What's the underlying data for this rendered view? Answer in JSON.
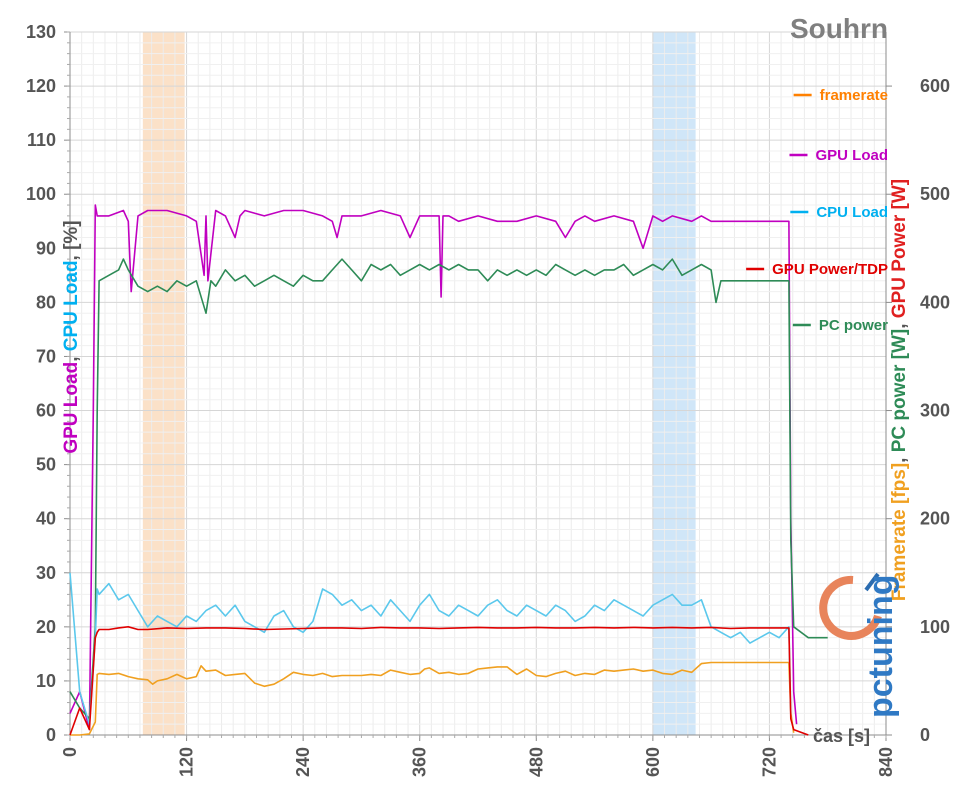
{
  "chart_data": {
    "type": "line",
    "title": "Souhrn",
    "xlabel": "čas [s]",
    "ylabel_left_parts": [
      {
        "text": "GPU Load",
        "color": "#c000c0"
      },
      {
        "text": ", ",
        "color": "#555555"
      },
      {
        "text": "CPU Load",
        "color": "#00b0f0"
      },
      {
        "text": ", [%]",
        "color": "#555555"
      }
    ],
    "ylabel_right_parts": [
      {
        "text": "Framerate [fps]",
        "color": "#f0a020"
      },
      {
        "text": ", ",
        "color": "#555555"
      },
      {
        "text": "PC power [W]",
        "color": "#2e8b57"
      },
      {
        "text": ", ",
        "color": "#555555"
      },
      {
        "text": "GPU Power [W]",
        "color": "#e02020"
      }
    ],
    "xlim": [
      0,
      840
    ],
    "ylim_left": [
      0,
      130
    ],
    "ylim_right": [
      0,
      650
    ],
    "x_ticks": [
      "0",
      "120",
      "240",
      "360",
      "480",
      "600",
      "720",
      "840"
    ],
    "y_left_ticks": [
      "0",
      "10",
      "20",
      "30",
      "40",
      "50",
      "60",
      "70",
      "80",
      "90",
      "100",
      "110",
      "120",
      "130"
    ],
    "y_right_ticks": [
      "0",
      "100",
      "200",
      "300",
      "400",
      "500",
      "600"
    ],
    "grid": true,
    "highlight_bands": [
      {
        "x0": 75,
        "x1": 118,
        "color": "#f8c89a"
      },
      {
        "x0": 600,
        "x1": 644,
        "color": "#a9d2f3"
      }
    ],
    "legend": {
      "placement": "right",
      "entries": [
        {
          "name": "framerate",
          "color": "#ff8000"
        },
        {
          "name": "GPU Load",
          "color": "#c000c0"
        },
        {
          "name": "CPU Load",
          "color": "#00b0f0"
        },
        {
          "name": "GPU Power/TDP",
          "color": "#e00000"
        },
        {
          "name": "PC power",
          "color": "#2e8b57"
        }
      ]
    },
    "series": [
      {
        "name": "GPU Load",
        "color": "#c000c0",
        "axis": "left",
        "x": [
          0,
          10,
          20,
          24,
          26,
          28,
          30,
          40,
          55,
          60,
          63,
          70,
          80,
          100,
          120,
          130,
          138,
          140,
          142,
          150,
          160,
          170,
          175,
          180,
          200,
          220,
          240,
          260,
          270,
          275,
          280,
          300,
          320,
          340,
          350,
          360,
          370,
          380,
          382,
          384,
          390,
          400,
          420,
          440,
          460,
          480,
          500,
          510,
          520,
          530,
          540,
          560,
          580,
          590,
          600,
          610,
          620,
          640,
          650,
          660,
          700,
          740,
          742,
          745,
          748
        ],
        "y": [
          4,
          8,
          1,
          60,
          98,
          96,
          96,
          96,
          97,
          95,
          82,
          96,
          97,
          97,
          96,
          95,
          85,
          96,
          84,
          97,
          96,
          92,
          96,
          97,
          96,
          97,
          97,
          96,
          95,
          92,
          96,
          96,
          97,
          96,
          92,
          96,
          96,
          96,
          81,
          96,
          96,
          95,
          96,
          95,
          95,
          96,
          95,
          92,
          95,
          96,
          95,
          96,
          95,
          90,
          96,
          95,
          96,
          95,
          96,
          95,
          95,
          95,
          40,
          8,
          2
        ]
      },
      {
        "name": "PC power",
        "color": "#2e8b57",
        "axis": "left",
        "x": [
          0,
          10,
          20,
          26,
          28,
          30,
          40,
          50,
          55,
          60,
          70,
          80,
          90,
          100,
          110,
          120,
          130,
          140,
          145,
          150,
          160,
          170,
          180,
          190,
          200,
          210,
          220,
          230,
          240,
          250,
          260,
          270,
          280,
          290,
          300,
          310,
          320,
          330,
          340,
          350,
          360,
          370,
          380,
          390,
          400,
          410,
          420,
          430,
          440,
          450,
          460,
          470,
          480,
          490,
          500,
          510,
          520,
          530,
          540,
          550,
          560,
          570,
          580,
          590,
          600,
          610,
          620,
          630,
          640,
          650,
          660,
          665,
          670,
          700,
          740,
          742,
          745,
          760,
          780
        ],
        "y": [
          8,
          5,
          3,
          20,
          60,
          84,
          85,
          86,
          88,
          86,
          83,
          82,
          83,
          82,
          84,
          83,
          84,
          78,
          84,
          83,
          86,
          84,
          85,
          83,
          84,
          85,
          84,
          83,
          85,
          84,
          84,
          86,
          88,
          86,
          84,
          87,
          86,
          87,
          85,
          86,
          87,
          86,
          87,
          86,
          87,
          86,
          86,
          84,
          86,
          85,
          86,
          85,
          86,
          85,
          87,
          86,
          85,
          86,
          85,
          86,
          86,
          87,
          85,
          86,
          87,
          86,
          88,
          85,
          86,
          87,
          86,
          80,
          84,
          84,
          84,
          36,
          20,
          18,
          18
        ]
      },
      {
        "name": "framerate",
        "color": "#f0a020",
        "axis": "right",
        "x": [
          0,
          10,
          20,
          26,
          28,
          30,
          40,
          50,
          60,
          70,
          80,
          85,
          90,
          100,
          110,
          120,
          130,
          135,
          140,
          150,
          160,
          170,
          180,
          190,
          200,
          210,
          220,
          230,
          240,
          250,
          260,
          270,
          280,
          290,
          300,
          310,
          320,
          330,
          340,
          350,
          360,
          365,
          370,
          380,
          390,
          400,
          410,
          420,
          430,
          440,
          450,
          460,
          470,
          480,
          490,
          500,
          510,
          520,
          530,
          540,
          550,
          560,
          570,
          580,
          590,
          600,
          610,
          620,
          630,
          640,
          650,
          660,
          665,
          670,
          700,
          740,
          742,
          745
        ],
        "y": [
          0,
          0,
          1,
          12,
          56,
          57,
          56,
          57,
          54,
          52,
          51,
          47,
          50,
          52,
          56,
          52,
          54,
          64,
          59,
          60,
          55,
          56,
          57,
          48,
          45,
          47,
          52,
          58,
          56,
          55,
          57,
          54,
          55,
          55,
          55,
          56,
          55,
          60,
          58,
          56,
          57,
          61,
          62,
          57,
          58,
          56,
          57,
          61,
          62,
          63,
          63,
          56,
          61,
          55,
          54,
          57,
          59,
          55,
          57,
          56,
          60,
          59,
          60,
          61,
          59,
          60,
          57,
          56,
          60,
          58,
          66,
          67,
          67,
          67,
          67,
          67,
          20,
          2
        ]
      },
      {
        "name": "CPU Load",
        "color": "#5bc8ec",
        "axis": "left",
        "x": [
          0,
          10,
          20,
          26,
          28,
          30,
          40,
          50,
          60,
          70,
          80,
          90,
          100,
          110,
          120,
          130,
          140,
          150,
          160,
          170,
          180,
          190,
          200,
          210,
          220,
          230,
          240,
          250,
          260,
          270,
          280,
          290,
          300,
          310,
          320,
          330,
          340,
          350,
          360,
          370,
          380,
          390,
          400,
          410,
          420,
          430,
          440,
          450,
          460,
          470,
          480,
          490,
          500,
          510,
          520,
          530,
          540,
          550,
          560,
          570,
          580,
          590,
          600,
          610,
          620,
          630,
          640,
          650,
          660,
          670,
          680,
          690,
          700,
          710,
          720,
          730,
          740,
          742
        ],
        "y": [
          30,
          8,
          2,
          18,
          27,
          26,
          28,
          25,
          26,
          23,
          20,
          22,
          21,
          20,
          22,
          21,
          23,
          24,
          22,
          24,
          21,
          20,
          19,
          22,
          23,
          20,
          19,
          21,
          27,
          26,
          24,
          25,
          23,
          24,
          22,
          25,
          23,
          21,
          24,
          26,
          23,
          22,
          24,
          23,
          22,
          24,
          25,
          23,
          22,
          24,
          23,
          22,
          24,
          23,
          21,
          22,
          24,
          23,
          25,
          24,
          23,
          22,
          24,
          25,
          26,
          24,
          24,
          25,
          20,
          19,
          18,
          19,
          17,
          18,
          19,
          18,
          20,
          4
        ]
      },
      {
        "name": "GPU Power/TDP",
        "color": "#e00000",
        "axis": "left",
        "x": [
          0,
          10,
          20,
          26,
          28,
          30,
          40,
          50,
          60,
          70,
          80,
          100,
          120,
          140,
          160,
          180,
          200,
          220,
          240,
          260,
          280,
          300,
          320,
          340,
          360,
          380,
          400,
          420,
          440,
          460,
          480,
          500,
          520,
          540,
          560,
          580,
          600,
          620,
          640,
          660,
          680,
          700,
          720,
          740,
          742,
          745,
          760
        ],
        "y": [
          0,
          5,
          1,
          18,
          19,
          19.5,
          19.5,
          19.8,
          20,
          19.5,
          19.5,
          19.8,
          19.7,
          19.8,
          19.8,
          19.7,
          19.5,
          19.6,
          19.7,
          19.8,
          19.8,
          19.7,
          19.9,
          19.8,
          19.8,
          19.7,
          19.8,
          19.9,
          19.8,
          19.8,
          19.9,
          19.8,
          19.8,
          19.9,
          19.8,
          19.9,
          19.8,
          19.9,
          19.8,
          19.9,
          19.7,
          19.8,
          19.8,
          19.8,
          3,
          1,
          0
        ]
      }
    ]
  },
  "logo": {
    "text": "pctuning"
  }
}
